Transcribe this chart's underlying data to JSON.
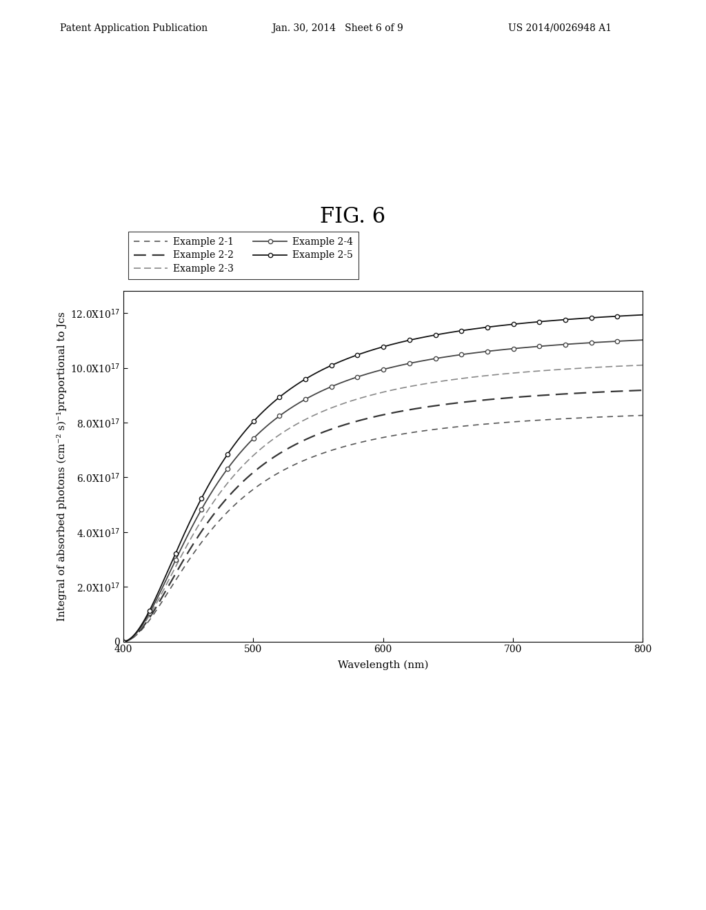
{
  "title": "FIG. 6",
  "xlabel": "Wavelength (nm)",
  "ylabel": "Integral of absorbed photons (cm⁻² s)⁻¹proportional to Jcs",
  "xlim": [
    400,
    800
  ],
  "ylim": [
    0,
    1.28e+18
  ],
  "yticks": [
    0,
    2e+17,
    4e+17,
    6e+17,
    8e+17,
    1e+18,
    1.2e+18
  ],
  "xticks": [
    400,
    500,
    600,
    700,
    800
  ],
  "header_text": "Patent Application Publication",
  "header_date": "Jan. 30, 2014   Sheet 6 of 9",
  "header_patent": "US 2014/0026948 A1",
  "series": [
    {
      "label": "Example 2-1",
      "color": "#555555",
      "has_marker": false,
      "scale": 0.72
    },
    {
      "label": "Example 2-2",
      "color": "#333333",
      "has_marker": false,
      "scale": 0.8
    },
    {
      "label": "Example 2-3",
      "color": "#888888",
      "has_marker": false,
      "scale": 0.88
    },
    {
      "label": "Example 2-4",
      "color": "#444444",
      "has_marker": true,
      "scale": 0.96
    },
    {
      "label": "Example 2-5",
      "color": "#111111",
      "has_marker": true,
      "scale": 1.04
    }
  ],
  "background_color": "#ffffff",
  "fig_label_fontsize": 22,
  "axis_label_fontsize": 11,
  "tick_fontsize": 10,
  "legend_fontsize": 10,
  "header_fontsize": 10
}
